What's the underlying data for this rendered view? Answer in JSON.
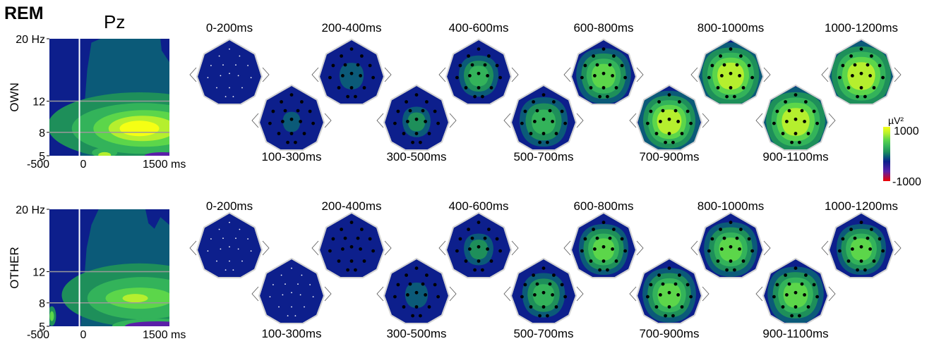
{
  "figure": {
    "condition": "REM",
    "channel": "Pz"
  },
  "colors": {
    "darkblue": "#0d1f8c",
    "teal": "#0b5a78",
    "green1": "#1e8f5a",
    "green2": "#33b35a",
    "green3": "#5cd64a",
    "yellowgreen": "#b5ef2e",
    "yellow": "#f5ff14",
    "purple": "#5b1fa8",
    "red": "#f00000"
  },
  "colorbar": {
    "unit": "µV²",
    "max_label": "1000",
    "min_label": "-1000"
  },
  "chart_data": [
    {
      "type": "heatmap",
      "row_label": "OWN",
      "y_tick_labels": [
        "20 Hz",
        "12",
        "8",
        "5"
      ],
      "x_tick_labels": [
        "-500",
        "0",
        "1500 ms"
      ],
      "y_range_hz": [
        5,
        20
      ],
      "x_range_ms": [
        -500,
        1500
      ],
      "gridlines_hz": [
        12,
        8
      ],
      "stimulus_onset_ms": 0,
      "peak": {
        "time_ms": 1000,
        "freq_hz": 8.5,
        "level": "yellow"
      }
    },
    {
      "type": "heatmap",
      "row_label": "OTHER",
      "y_tick_labels": [
        "20 Hz",
        "12",
        "8",
        "5"
      ],
      "x_tick_labels": [
        "-500",
        "0",
        "1500 ms"
      ],
      "y_range_hz": [
        5,
        20
      ],
      "x_range_ms": [
        -500,
        1500
      ],
      "gridlines_hz": [
        12,
        8
      ],
      "stimulus_onset_ms": 0,
      "peak": {
        "time_ms": 800,
        "freq_hz": 8.5,
        "level": "green"
      }
    }
  ],
  "topomaps": [
    {
      "row": "OWN",
      "windows": [
        {
          "label": "0-200ms",
          "level": 0.05
        },
        {
          "label": "100-300ms",
          "level": 0.12
        },
        {
          "label": "200-400ms",
          "level": 0.22
        },
        {
          "label": "300-500ms",
          "level": 0.28
        },
        {
          "label": "400-600ms",
          "level": 0.45
        },
        {
          "label": "500-700ms",
          "level": 0.58
        },
        {
          "label": "600-800ms",
          "level": 0.68
        },
        {
          "label": "700-900ms",
          "level": 0.78
        },
        {
          "label": "800-1000ms",
          "level": 0.86
        },
        {
          "label": "900-1100ms",
          "level": 0.9
        },
        {
          "label": "1000-1200ms",
          "level": 0.9
        }
      ]
    },
    {
      "row": "OTHER",
      "windows": [
        {
          "label": "0-200ms",
          "level": 0.0
        },
        {
          "label": "100-300ms",
          "level": 0.0
        },
        {
          "label": "200-400ms",
          "level": 0.08
        },
        {
          "label": "300-500ms",
          "level": 0.2
        },
        {
          "label": "400-600ms",
          "level": 0.3
        },
        {
          "label": "500-700ms",
          "level": 0.5
        },
        {
          "label": "600-800ms",
          "level": 0.6
        },
        {
          "label": "700-900ms",
          "level": 0.66
        },
        {
          "label": "800-1000ms",
          "level": 0.66
        },
        {
          "label": "900-1100ms",
          "level": 0.7
        },
        {
          "label": "1000-1200ms",
          "level": 0.6
        }
      ]
    }
  ]
}
